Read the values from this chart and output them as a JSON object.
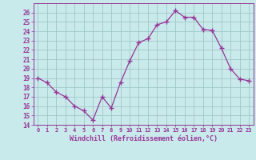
{
  "x": [
    0,
    1,
    2,
    3,
    4,
    5,
    6,
    7,
    8,
    9,
    10,
    11,
    12,
    13,
    14,
    15,
    16,
    17,
    18,
    19,
    20,
    21,
    22,
    23
  ],
  "y": [
    19,
    18.5,
    17.5,
    17,
    16,
    15.5,
    14.5,
    17,
    15.8,
    18.5,
    20.8,
    22.8,
    23.2,
    24.7,
    25.0,
    26.2,
    25.5,
    25.5,
    24.2,
    24.1,
    22.2,
    20.0,
    18.9,
    18.7
  ],
  "line_color": "#993399",
  "marker": "D",
  "marker_size": 2.2,
  "bg_color": "#c8eaea",
  "grid_color": "#a0c8c8",
  "xlabel": "Windchill (Refroidissement éolien,°C)",
  "ylim": [
    14,
    27
  ],
  "yticks": [
    14,
    15,
    16,
    17,
    18,
    19,
    20,
    21,
    22,
    23,
    24,
    25,
    26
  ],
  "xtick_labels": [
    "0",
    "1",
    "2",
    "3",
    "4",
    "5",
    "6",
    "7",
    "8",
    "9",
    "10",
    "11",
    "12",
    "13",
    "14",
    "15",
    "16",
    "17",
    "18",
    "19",
    "20",
    "21",
    "22",
    "23"
  ],
  "axis_color": "#993399",
  "tick_color": "#993399",
  "label_color": "#993399"
}
